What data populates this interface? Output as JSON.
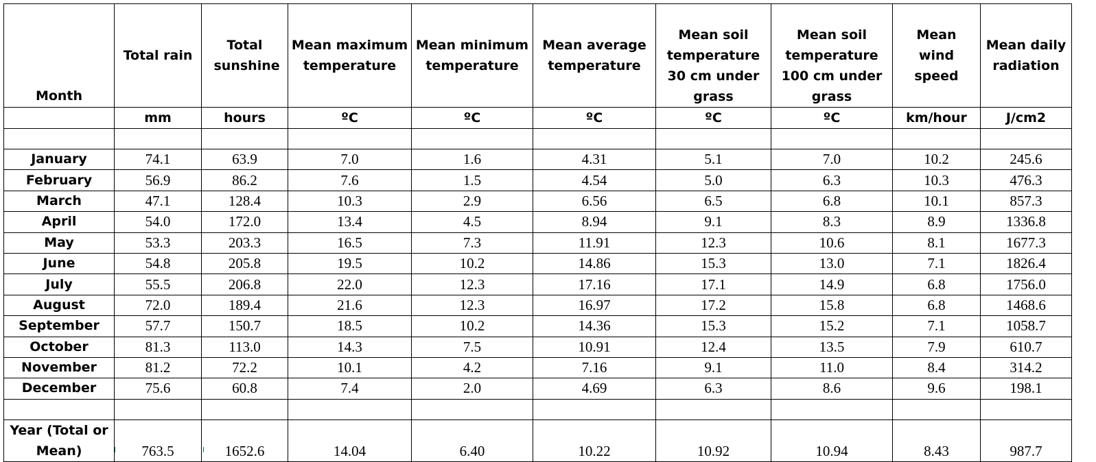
{
  "table": {
    "headers": [
      "Month",
      "Total rain",
      "Total sunshine",
      "Mean maximum temperature",
      "Mean minimum temperature",
      "Mean average temperature",
      "Mean soil temperature 30 cm under grass",
      "Mean soil temperature 100 cm under grass",
      "Mean wind speed",
      "Mean daily radiation"
    ],
    "units": [
      "",
      "mm",
      "hours",
      "ºC",
      "ºC",
      "ºC",
      "ºC",
      "ºC",
      "km/hour",
      "J/cm2"
    ],
    "rows": [
      [
        "January",
        "74.1",
        "63.9",
        "7.0",
        "1.6",
        "4.31",
        "5.1",
        "7.0",
        "10.2",
        "245.6"
      ],
      [
        "February",
        "56.9",
        "86.2",
        "7.6",
        "1.5",
        "4.54",
        "5.0",
        "6.3",
        "10.3",
        "476.3"
      ],
      [
        "March",
        "47.1",
        "128.4",
        "10.3",
        "2.9",
        "6.56",
        "6.5",
        "6.8",
        "10.1",
        "857.3"
      ],
      [
        "April",
        "54.0",
        "172.0",
        "13.4",
        "4.5",
        "8.94",
        "9.1",
        "8.3",
        "8.9",
        "1336.8"
      ],
      [
        "May",
        "53.3",
        "203.3",
        "16.5",
        "7.3",
        "11.91",
        "12.3",
        "10.6",
        "8.1",
        "1677.3"
      ],
      [
        "June",
        "54.8",
        "205.8",
        "19.5",
        "10.2",
        "14.86",
        "15.3",
        "13.0",
        "7.1",
        "1826.4"
      ],
      [
        "July",
        "55.5",
        "206.8",
        "22.0",
        "12.3",
        "17.16",
        "17.1",
        "14.9",
        "6.8",
        "1756.0"
      ],
      [
        "August",
        "72.0",
        "189.4",
        "21.6",
        "12.3",
        "16.97",
        "17.2",
        "15.8",
        "6.8",
        "1468.6"
      ],
      [
        "September",
        "57.7",
        "150.7",
        "18.5",
        "10.2",
        "14.36",
        "15.3",
        "15.2",
        "7.1",
        "1058.7"
      ],
      [
        "October",
        "81.3",
        "113.0",
        "14.3",
        "7.5",
        "10.91",
        "12.4",
        "13.5",
        "7.9",
        "610.7"
      ],
      [
        "November",
        "81.2",
        "72.2",
        "10.1",
        "4.2",
        "7.16",
        "9.1",
        "11.0",
        "8.4",
        "314.2"
      ],
      [
        "December",
        "75.6",
        "60.8",
        "7.4",
        "2.0",
        "4.69",
        "6.3",
        "8.6",
        "9.6",
        "198.1"
      ]
    ],
    "year_row": {
      "label_line1": "Year (Total or",
      "label_line2": "Mean)",
      "values": [
        "763.5",
        "1652.6",
        "14.04",
        "6.40",
        "10.22",
        "10.92",
        "10.94",
        "8.43",
        "987.7"
      ]
    }
  }
}
